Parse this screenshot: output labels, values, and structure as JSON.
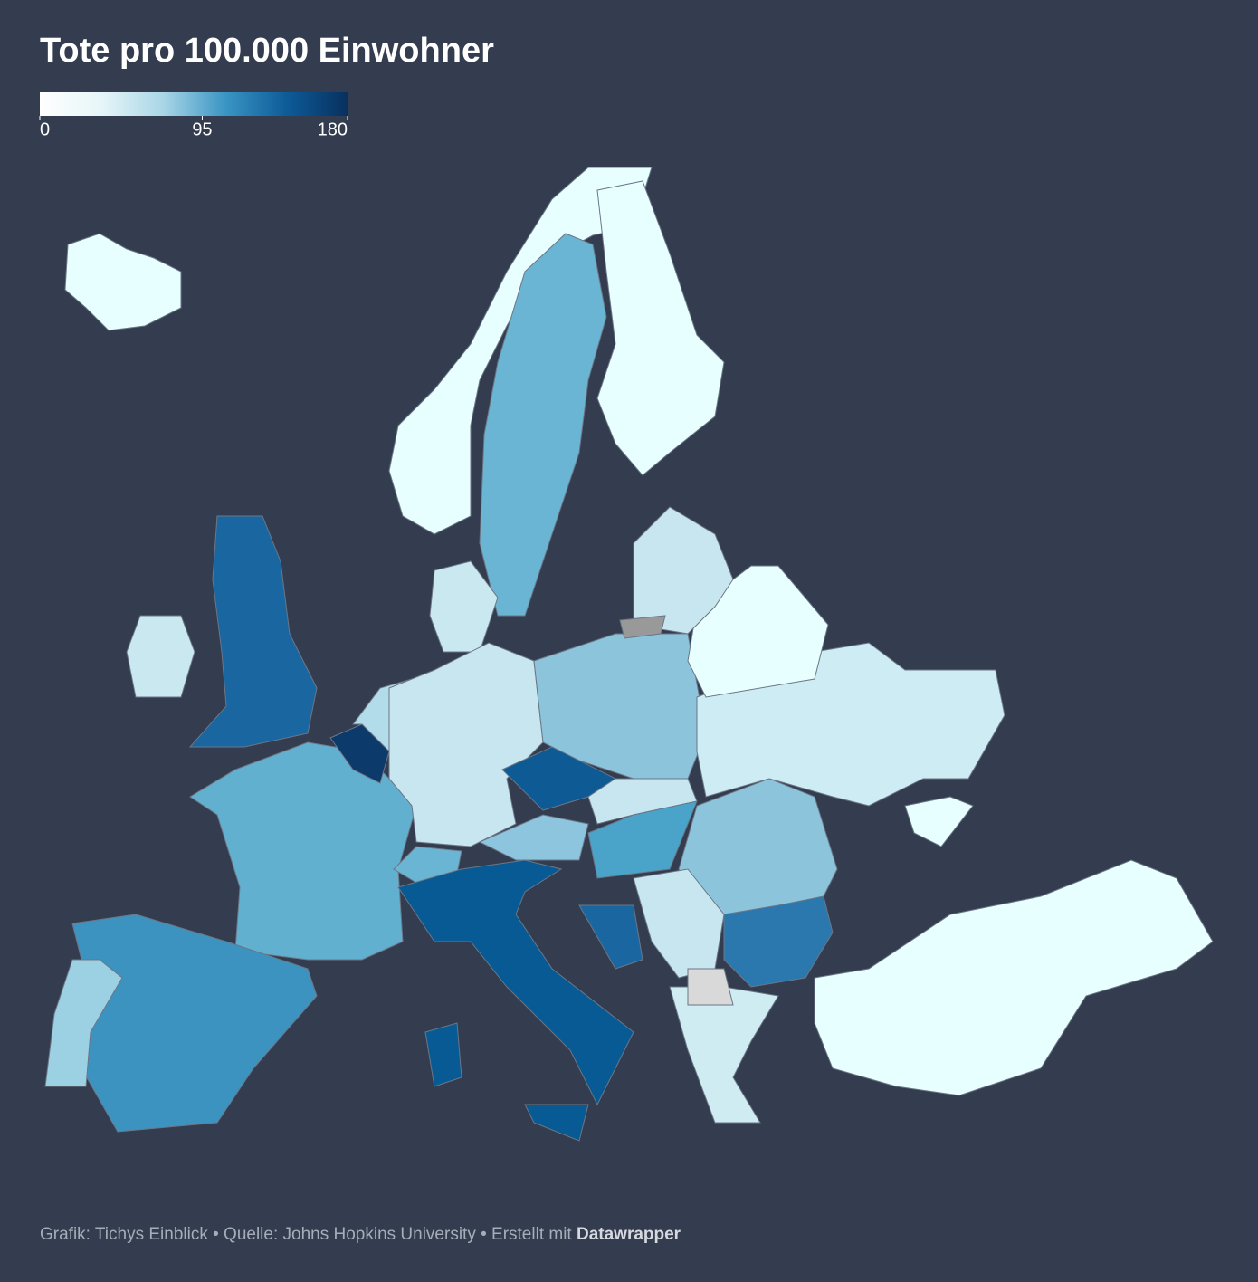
{
  "title": "Tote pro 100.000 Einwohner",
  "legend": {
    "range": [
      0,
      180
    ],
    "ticks": [
      0,
      95,
      180
    ],
    "colors": [
      "#ffffff",
      "#e6f6f8",
      "#a9d6e6",
      "#3b96c4",
      "#0d5c99",
      "#08305e"
    ]
  },
  "footer": {
    "text": "Grafik: Tichys Einblick • Quelle: Johns Hopkins University • Erstellt mit ",
    "brand": "Datawrapper"
  }
}
